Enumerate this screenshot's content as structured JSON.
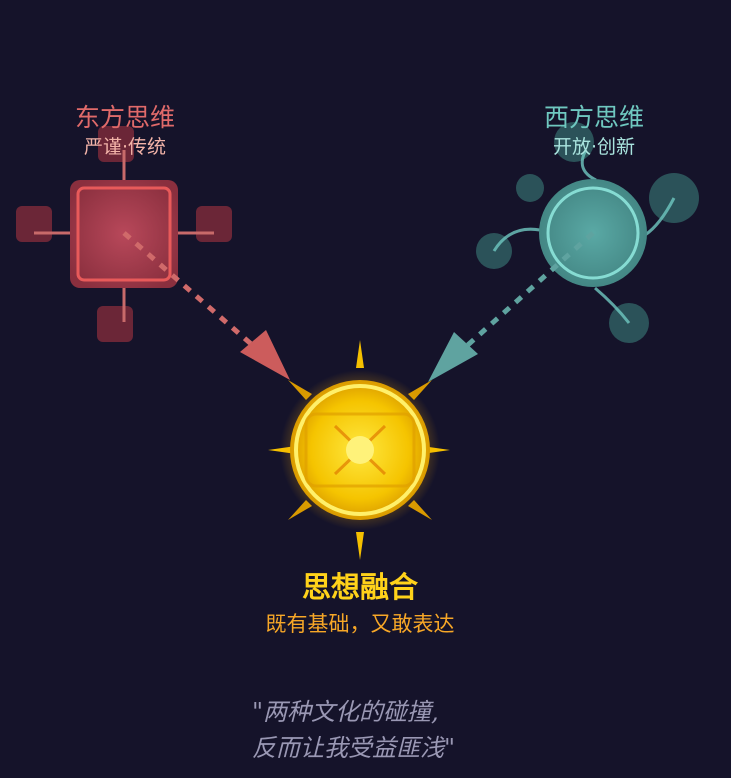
{
  "east": {
    "title": "东方思维",
    "subtitle": "严谨·传统",
    "color": "#e06a6a"
  },
  "west": {
    "title": "西方思维",
    "subtitle": "开放·创新",
    "color": "#6fc8c0"
  },
  "fusion": {
    "title": "思想融合",
    "subtitle": "既有基础，又敢表达",
    "color": "#ffd21a"
  },
  "quote": {
    "line1": "\"两种文化的碰撞,",
    "line2": "反而让我受益匪浅\""
  }
}
